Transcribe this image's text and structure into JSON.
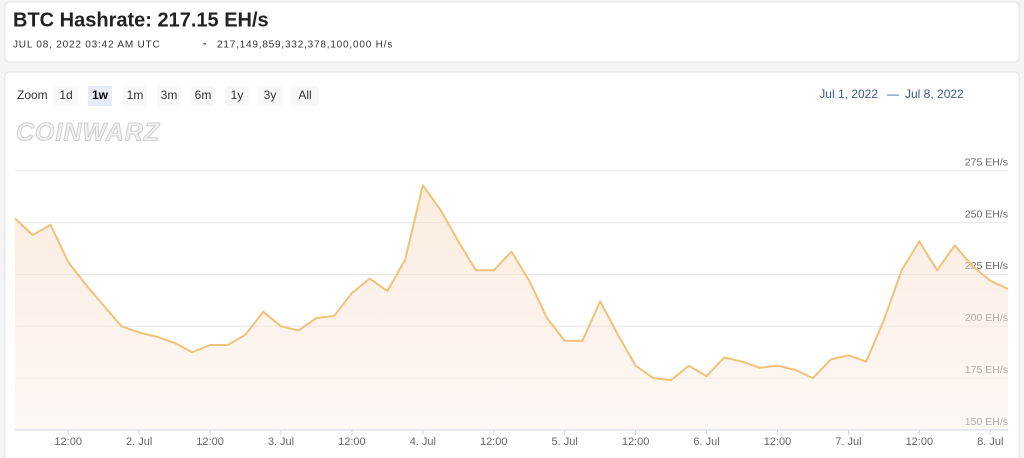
{
  "header": {
    "title": "BTC Hashrate: 217.15 EH/s",
    "timestamp": "JUL 08, 2022 03:42 AM UTC",
    "separator": "-",
    "hashrate": "217,149,859,332,378,100,000 H/s"
  },
  "zoom": {
    "label": "Zoom",
    "buttons": [
      "1d",
      "1w",
      "1m",
      "3m",
      "6m",
      "1y",
      "3y",
      "All"
    ],
    "selected": "1w"
  },
  "range": {
    "from": "Jul 1, 2022",
    "separator": "—",
    "to": "Jul 8, 2022"
  },
  "watermark": "CoinWarz",
  "chart_data": {
    "type": "area",
    "color": "#f0c27a",
    "x": [
      "1. Jul 03:00",
      "1. Jul 06:00",
      "1. Jul 09:00",
      "1. Jul 12:00",
      "1. Jul 15:00",
      "1. Jul 18:00",
      "1. Jul 21:00",
      "2. Jul 00:00",
      "2. Jul 03:00",
      "2. Jul 06:00",
      "2. Jul 09:00",
      "2. Jul 12:00",
      "2. Jul 15:00",
      "2. Jul 18:00",
      "2. Jul 21:00",
      "3. Jul 00:00",
      "3. Jul 03:00",
      "3. Jul 06:00",
      "3. Jul 09:00",
      "3. Jul 12:00",
      "3. Jul 15:00",
      "3. Jul 18:00",
      "3. Jul 21:00",
      "4. Jul 00:00",
      "4. Jul 03:00",
      "4. Jul 06:00",
      "4. Jul 09:00",
      "4. Jul 12:00",
      "4. Jul 15:00",
      "4. Jul 18:00",
      "4. Jul 21:00",
      "5. Jul 00:00",
      "5. Jul 03:00",
      "5. Jul 06:00",
      "5. Jul 09:00",
      "5. Jul 12:00",
      "5. Jul 15:00",
      "5. Jul 18:00",
      "5. Jul 21:00",
      "6. Jul 00:00",
      "6. Jul 03:00",
      "6. Jul 06:00",
      "6. Jul 09:00",
      "6. Jul 12:00",
      "6. Jul 15:00",
      "6. Jul 18:00",
      "6. Jul 21:00",
      "7. Jul 00:00",
      "7. Jul 03:00",
      "7. Jul 06:00",
      "7. Jul 09:00",
      "7. Jul 12:00",
      "7. Jul 15:00",
      "7. Jul 18:00",
      "7. Jul 21:00",
      "8. Jul 00:00",
      "8. Jul 03:00"
    ],
    "values": [
      252,
      244,
      249,
      231,
      220,
      210,
      200,
      197,
      195,
      192,
      187.5,
      191,
      191,
      196,
      207,
      200,
      198,
      204,
      205,
      216,
      223,
      217,
      232,
      268,
      256,
      241,
      227,
      227,
      236,
      222,
      204,
      193,
      193,
      212,
      196,
      181,
      175,
      174,
      181,
      176,
      185,
      183,
      180,
      181,
      179,
      175,
      184,
      186,
      183,
      203,
      227,
      241,
      227,
      239,
      229,
      222,
      218
    ],
    "xlim": [
      "1. Jul 03:00",
      "8. Jul 03:00"
    ],
    "xticks": [
      {
        "value": "1. Jul 12:00",
        "label": "12:00"
      },
      {
        "value": "2. Jul 00:00",
        "label": "2. Jul"
      },
      {
        "value": "2. Jul 12:00",
        "label": "12:00"
      },
      {
        "value": "3. Jul 00:00",
        "label": "3. Jul"
      },
      {
        "value": "3. Jul 12:00",
        "label": "12:00"
      },
      {
        "value": "4. Jul 00:00",
        "label": "4. Jul"
      },
      {
        "value": "4. Jul 12:00",
        "label": "12:00"
      },
      {
        "value": "5. Jul 00:00",
        "label": "5. Jul"
      },
      {
        "value": "5. Jul 12:00",
        "label": "12:00"
      },
      {
        "value": "6. Jul 00:00",
        "label": "6. Jul"
      },
      {
        "value": "6. Jul 12:00",
        "label": "12:00"
      },
      {
        "value": "7. Jul 00:00",
        "label": "7. Jul"
      },
      {
        "value": "7. Jul 12:00",
        "label": "12:00"
      },
      {
        "value": "8. Jul 00:00",
        "label": "8. Jul"
      }
    ],
    "ylim": [
      150,
      285
    ],
    "yticks": [
      {
        "value": 150,
        "label": "150 EH/s"
      },
      {
        "value": 175,
        "label": "175 EH/s"
      },
      {
        "value": 200,
        "label": "200 EH/s"
      },
      {
        "value": 225,
        "label": "225 EH/s"
      },
      {
        "value": 250,
        "label": "250 EH/s"
      },
      {
        "value": 275,
        "label": "275 EH/s"
      }
    ],
    "grid": true
  }
}
